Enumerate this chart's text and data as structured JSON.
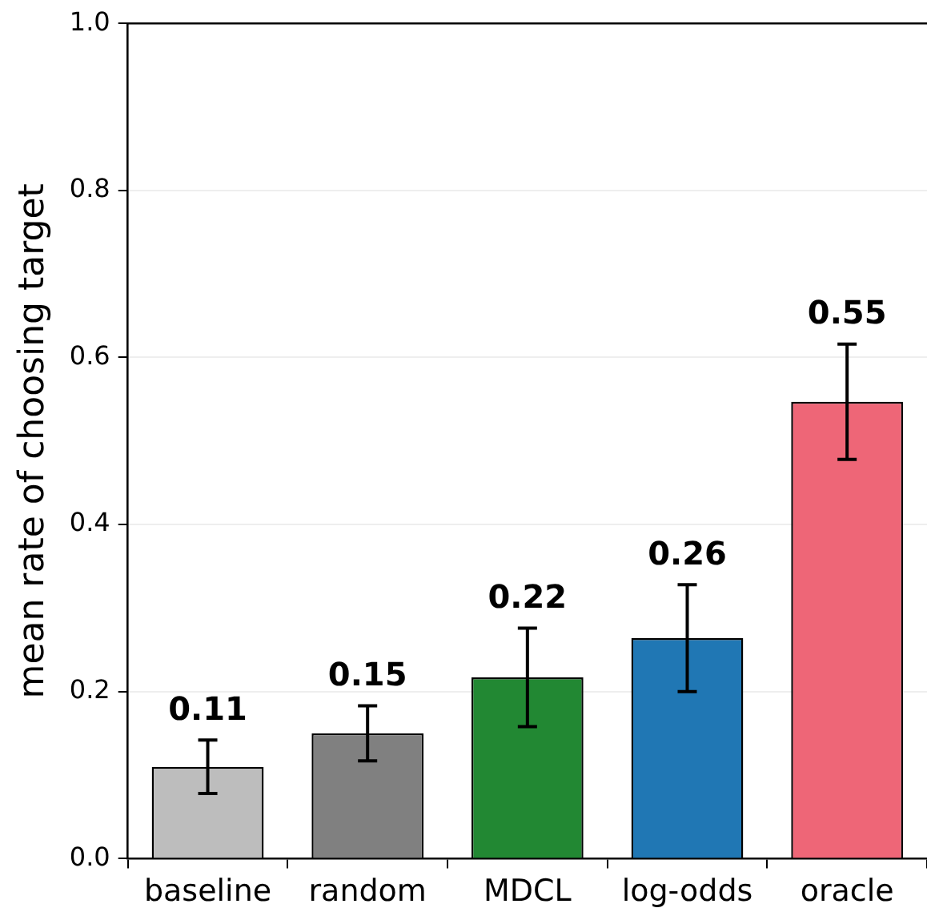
{
  "chart_data": {
    "type": "bar",
    "ylabel": "mean rate of choosing target",
    "categories": [
      "baseline",
      "random",
      "MDCL",
      "log-odds",
      "oracle"
    ],
    "values": [
      0.11,
      0.15,
      0.217,
      0.264,
      0.547
    ],
    "colors": [
      "#bdbdbd",
      "#808080",
      "#228833",
      "#2077b4",
      "#ee6677"
    ],
    "errors": [
      0.032,
      0.033,
      0.059,
      0.064,
      0.069
    ],
    "value_labels": [
      "0.11",
      "0.15",
      "0.22",
      "0.26",
      "0.55"
    ],
    "ylim": [
      0,
      1
    ],
    "yticks": [
      {
        "value": 0,
        "label": "0.0"
      },
      {
        "value": 0.2,
        "label": "0.2"
      },
      {
        "value": 0.4,
        "label": "0.4"
      },
      {
        "value": 0.6,
        "label": "0.6"
      },
      {
        "value": 0.8,
        "label": "0.8"
      },
      {
        "value": 1,
        "label": "1.0"
      }
    ],
    "grid": "y"
  }
}
